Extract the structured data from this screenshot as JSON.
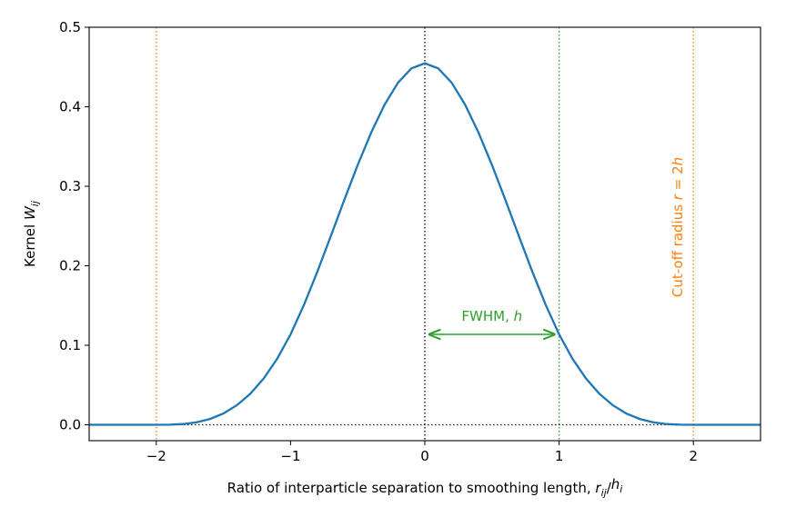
{
  "chart_data": {
    "type": "line",
    "x_label": [
      "Ratio of interparticle separation to smoothing length, ",
      "r",
      "ij",
      "/",
      "h",
      "i"
    ],
    "y_label": [
      "Kernel ",
      "W",
      "ij"
    ],
    "x": [
      -2.5,
      -2.4,
      -2.3,
      -2.2,
      -2.1,
      -2.0,
      -1.9,
      -1.8,
      -1.7,
      -1.6,
      -1.5,
      -1.4,
      -1.3,
      -1.2,
      -1.1,
      -1.0,
      -0.9,
      -0.8,
      -0.7,
      -0.6,
      -0.5,
      -0.4,
      -0.3,
      -0.2,
      -0.1,
      0.0,
      0.1,
      0.2,
      0.3,
      0.4,
      0.5,
      0.6,
      0.7,
      0.8,
      0.9,
      1.0,
      1.1,
      1.2,
      1.3,
      1.4,
      1.5,
      1.6,
      1.7,
      1.8,
      1.9,
      2.0,
      2.1,
      2.2,
      2.3,
      2.4,
      2.5
    ],
    "series": [
      {
        "color": "#1f77b4",
        "values": [
          0,
          0,
          0,
          0,
          0,
          0,
          0.0001,
          0.0009,
          0.0031,
          0.0073,
          0.0142,
          0.0246,
          0.039,
          0.0582,
          0.0829,
          0.1137,
          0.1509,
          0.1928,
          0.2375,
          0.2828,
          0.3268,
          0.3674,
          0.4026,
          0.4302,
          0.4483,
          0.4547,
          0.4483,
          0.4302,
          0.4026,
          0.3674,
          0.3268,
          0.2828,
          0.2375,
          0.1928,
          0.1509,
          0.1137,
          0.0829,
          0.0582,
          0.039,
          0.0246,
          0.0142,
          0.0073,
          0.0031,
          0.0009,
          0.0001,
          0,
          0,
          0,
          0,
          0,
          0
        ]
      }
    ],
    "xlim": [
      -2.5,
      2.5
    ],
    "ylim": [
      -0.02,
      0.5
    ],
    "xticks": [
      {
        "value": -2,
        "label": "−2"
      },
      {
        "value": -1,
        "label": "−1"
      },
      0,
      1,
      2
    ],
    "yticks": [
      {
        "value": 0,
        "label": "0.0"
      },
      0.1,
      0.2,
      0.3,
      0.4,
      0.5
    ],
    "vlines": [
      {
        "x": -2,
        "color": "#ff7f0e"
      },
      {
        "x": 0,
        "color": "#000000"
      },
      {
        "x": 1,
        "color": "#2ca02c"
      },
      {
        "x": 2,
        "color": "#ff7f0e"
      }
    ],
    "hlines": [
      {
        "y": 0,
        "color": "#000000"
      }
    ],
    "fwhm_arrow": {
      "x": [
        0,
        1
      ],
      "y": 0.1137,
      "color": "#2ca02c",
      "label": [
        "FWHM, ",
        "h"
      ]
    },
    "cutoff_label": {
      "color": "#ff7f0e",
      "text": [
        "Cut-off radius ",
        "r",
        " = 2",
        "h"
      ]
    }
  }
}
